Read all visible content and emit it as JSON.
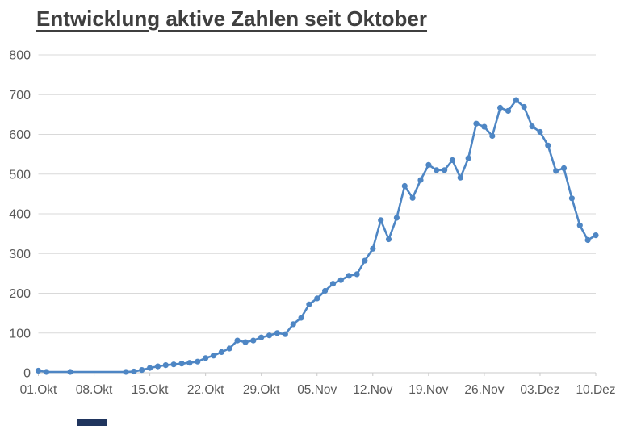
{
  "page": {
    "background": "#ffffff"
  },
  "chart_data": {
    "type": "line",
    "title": "Entwicklung aktive Zahlen seit Oktober",
    "legend": "none",
    "grid": "horizontal",
    "ylim": [
      0,
      800
    ],
    "yticks": [
      0,
      100,
      200,
      300,
      400,
      500,
      600,
      700,
      800
    ],
    "xticks": [
      {
        "label": "01.Okt",
        "day": 0
      },
      {
        "label": "08.Okt",
        "day": 7
      },
      {
        "label": "15.Okt",
        "day": 14
      },
      {
        "label": "22.Okt",
        "day": 21
      },
      {
        "label": "29.Okt",
        "day": 28
      },
      {
        "label": "05.Nov",
        "day": 35
      },
      {
        "label": "12.Nov",
        "day": 42
      },
      {
        "label": "19.Nov",
        "day": 49
      },
      {
        "label": "26.Nov",
        "day": 56
      },
      {
        "label": "03.Dez",
        "day": 63
      },
      {
        "label": "10.Dez",
        "day": 70
      }
    ],
    "points": [
      {
        "date": "01.Okt",
        "day": 0,
        "value": 5
      },
      {
        "date": "02.Okt",
        "day": 1,
        "value": 2
      },
      {
        "date": "05.Okt",
        "day": 4,
        "value": 2
      },
      {
        "date": "12.Okt",
        "day": 11,
        "value": 2
      },
      {
        "date": "13.Okt",
        "day": 12,
        "value": 3
      },
      {
        "date": "14.Okt",
        "day": 13,
        "value": 7
      },
      {
        "date": "15.Okt",
        "day": 14,
        "value": 12
      },
      {
        "date": "16.Okt",
        "day": 15,
        "value": 16
      },
      {
        "date": "17.Okt",
        "day": 16,
        "value": 19
      },
      {
        "date": "18.Okt",
        "day": 17,
        "value": 21
      },
      {
        "date": "19.Okt",
        "day": 18,
        "value": 23
      },
      {
        "date": "20.Okt",
        "day": 19,
        "value": 25
      },
      {
        "date": "21.Okt",
        "day": 20,
        "value": 28
      },
      {
        "date": "22.Okt",
        "day": 21,
        "value": 37
      },
      {
        "date": "23.Okt",
        "day": 22,
        "value": 43
      },
      {
        "date": "24.Okt",
        "day": 23,
        "value": 52
      },
      {
        "date": "25.Okt",
        "day": 24,
        "value": 61
      },
      {
        "date": "26.Okt",
        "day": 25,
        "value": 81
      },
      {
        "date": "27.Okt",
        "day": 26,
        "value": 77
      },
      {
        "date": "28.Okt",
        "day": 27,
        "value": 81
      },
      {
        "date": "29.Okt",
        "day": 28,
        "value": 89
      },
      {
        "date": "30.Okt",
        "day": 29,
        "value": 94
      },
      {
        "date": "31.Okt",
        "day": 30,
        "value": 100
      },
      {
        "date": "01.Nov",
        "day": 31,
        "value": 97
      },
      {
        "date": "02.Nov",
        "day": 32,
        "value": 122
      },
      {
        "date": "03.Nov",
        "day": 33,
        "value": 138
      },
      {
        "date": "04.Nov",
        "day": 34,
        "value": 172
      },
      {
        "date": "05.Nov",
        "day": 35,
        "value": 187
      },
      {
        "date": "06.Nov",
        "day": 36,
        "value": 206
      },
      {
        "date": "07.Nov",
        "day": 37,
        "value": 224
      },
      {
        "date": "08.Nov",
        "day": 38,
        "value": 233
      },
      {
        "date": "09.Nov",
        "day": 39,
        "value": 244
      },
      {
        "date": "10.Nov",
        "day": 40,
        "value": 248
      },
      {
        "date": "11.Nov",
        "day": 41,
        "value": 282
      },
      {
        "date": "12.Nov",
        "day": 42,
        "value": 312
      },
      {
        "date": "13.Nov",
        "day": 43,
        "value": 384
      },
      {
        "date": "14.Nov",
        "day": 44,
        "value": 336
      },
      {
        "date": "15.Nov",
        "day": 45,
        "value": 390
      },
      {
        "date": "16.Nov",
        "day": 46,
        "value": 470
      },
      {
        "date": "17.Nov",
        "day": 47,
        "value": 440
      },
      {
        "date": "18.Nov",
        "day": 48,
        "value": 485
      },
      {
        "date": "19.Nov",
        "day": 49,
        "value": 523
      },
      {
        "date": "20.Nov",
        "day": 50,
        "value": 510
      },
      {
        "date": "21.Nov",
        "day": 51,
        "value": 510
      },
      {
        "date": "22.Nov",
        "day": 52,
        "value": 535
      },
      {
        "date": "23.Nov",
        "day": 53,
        "value": 491
      },
      {
        "date": "24.Nov",
        "day": 54,
        "value": 540
      },
      {
        "date": "25.Nov",
        "day": 55,
        "value": 627
      },
      {
        "date": "26.Nov",
        "day": 56,
        "value": 619
      },
      {
        "date": "27.Nov",
        "day": 57,
        "value": 596
      },
      {
        "date": "28.Nov",
        "day": 58,
        "value": 667
      },
      {
        "date": "29.Nov",
        "day": 59,
        "value": 659
      },
      {
        "date": "30.Nov",
        "day": 60,
        "value": 686
      },
      {
        "date": "01.Dez",
        "day": 61,
        "value": 669
      },
      {
        "date": "02.Dez",
        "day": 62,
        "value": 620
      },
      {
        "date": "03.Dez",
        "day": 63,
        "value": 606
      },
      {
        "date": "04.Dez",
        "day": 64,
        "value": 572
      },
      {
        "date": "05.Dez",
        "day": 65,
        "value": 508
      },
      {
        "date": "06.Dez",
        "day": 66,
        "value": 515
      },
      {
        "date": "07.Dez",
        "day": 67,
        "value": 439
      },
      {
        "date": "08.Dez",
        "day": 68,
        "value": 371
      },
      {
        "date": "09.Dez",
        "day": 69,
        "value": 334
      },
      {
        "date": "10.Dez",
        "day": 70,
        "value": 346
      }
    ],
    "line_color": "#4e86c4",
    "marker_color": "#4e86c4",
    "gridline_color": "#d9d9d9",
    "axisline_color": "#c9c9c9",
    "label_color": "#595959",
    "title_color": "#3f3f3f"
  },
  "artifacts": {
    "bottom_fragment_color": "#20355e"
  }
}
